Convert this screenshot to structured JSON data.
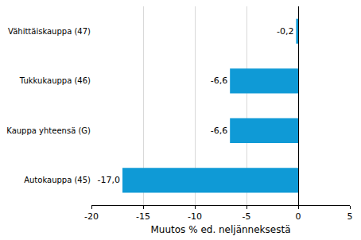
{
  "chart_data": {
    "type": "bar",
    "orientation": "horizontal",
    "categories": [
      "Vähittäiskauppa (47)",
      "Tukkukauppa (46)",
      "Kauppa yhteensä (G)",
      "Autokauppa (45)"
    ],
    "values": [
      -0.2,
      -6.6,
      -6.6,
      -17.0
    ],
    "value_labels": [
      "-0,2",
      "-6,6",
      "-6,6",
      "-17,0"
    ],
    "color": "#0f9ad6",
    "x_label": "Muutos % ed. neljänneksestä",
    "xlim": [
      -20,
      5
    ],
    "xticks": [
      -20,
      -15,
      -10,
      -5,
      0,
      5
    ],
    "grid": true,
    "data_labels": true
  }
}
